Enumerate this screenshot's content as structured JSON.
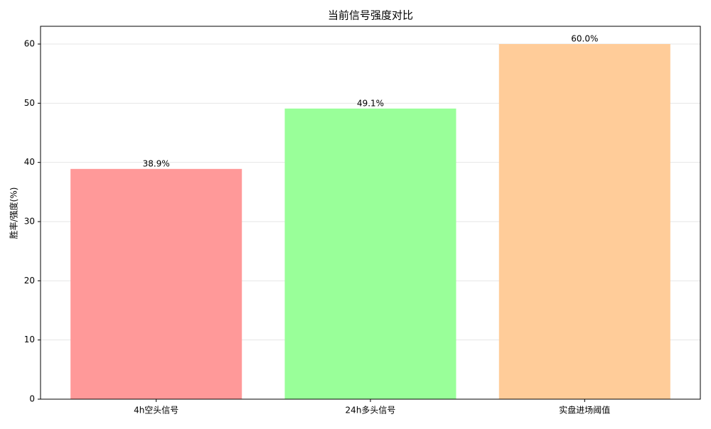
{
  "chart_data": {
    "type": "bar",
    "title": "当前信号强度对比",
    "y_label": "胜率/强度(%)",
    "categories": [
      "4h空头信号",
      "24h多头信号",
      "实盘进场阈值"
    ],
    "values": [
      38.9,
      49.1,
      60.0
    ],
    "value_labels": [
      "38.9%",
      "49.1%",
      "60.0%"
    ],
    "colors": [
      "#ff9999",
      "#99ff99",
      "#ffcc99"
    ],
    "ylim": [
      0,
      63
    ],
    "yticks": [
      0,
      10,
      20,
      30,
      40,
      50,
      60
    ],
    "grid": true
  }
}
